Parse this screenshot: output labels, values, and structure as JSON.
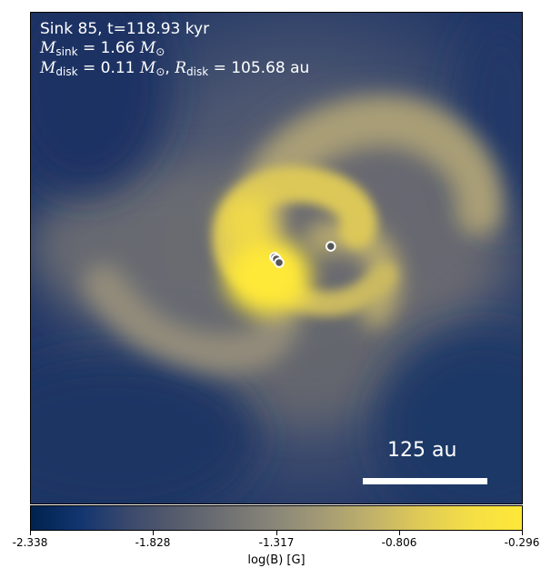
{
  "header": {
    "title": "Sink 85, t=118.93 kyr",
    "sink_mass_symbol": "M",
    "sink_mass_sub": "sink",
    "sink_mass_value": "= 1.66",
    "solar_symbol": "M",
    "solar_sub": "⊙",
    "disk_mass_symbol": "M",
    "disk_mass_sub": "disk",
    "disk_mass_value": "= 0.11",
    "disk_mass_unit_sub": "⊙",
    "disk_radius_symbol": "R",
    "disk_radius_sub": "disk",
    "disk_radius_value": "= 105.68 au"
  },
  "scale_bar": {
    "label": "125 au"
  },
  "colorbar": {
    "label": "log(B) [G]",
    "colormap": "cividis",
    "ticks": [
      "-2.338",
      "-1.828",
      "-1.317",
      "-0.806",
      "-0.296"
    ]
  },
  "sinks": {
    "count": 4,
    "marker_color": "#555555",
    "marker_edge": "#ffffff"
  },
  "colors": {
    "low": "#00224e",
    "mid": "#7c7b78",
    "high": "#fee838"
  }
}
